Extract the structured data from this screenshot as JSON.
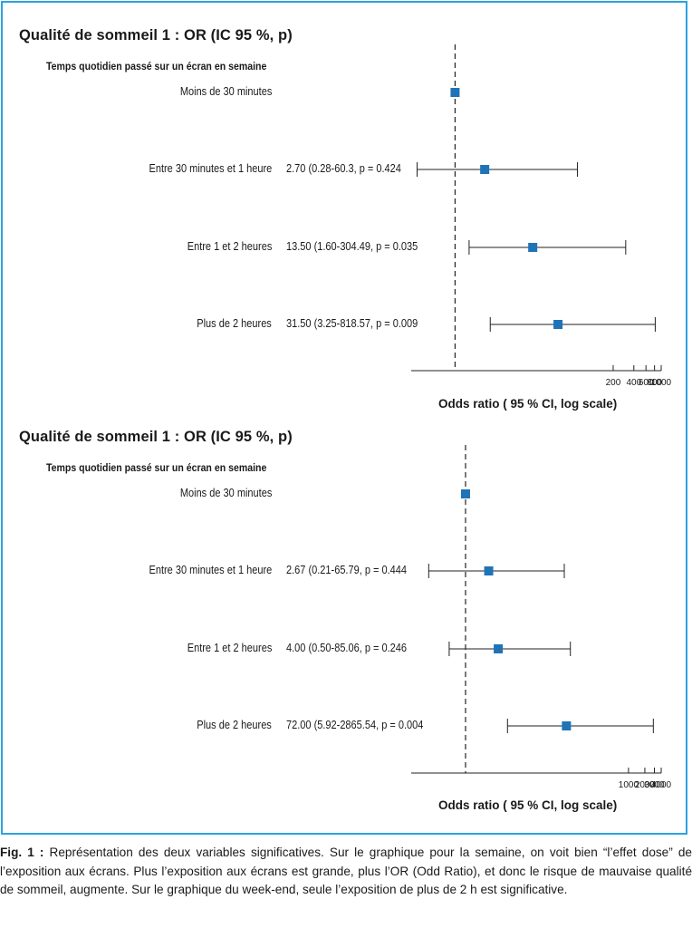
{
  "caption": {
    "prefix": "Fig. 1 :",
    "text": " Représentation des deux variables significatives. Sur le graphique pour la semaine, on voit bien “l’effet dose” de l’exposition aux écrans. Plus l’exposition aux écrans est grande, plus l’OR (Odd Ratio), et donc le risque de mauvaise qualité de sommeil, augmente. Sur le graphique du week-end, seule l’exposition de plus de 2 h est significative."
  },
  "style": {
    "marker_color": "#1f73b7",
    "frame_color": "#29a3e0"
  },
  "chart_data": [
    {
      "type": "forest",
      "title": "Qualité de sommeil 1 : OR (IC 95 %, p)",
      "section_label": "Temps quotidien passé sur un écran en semaine",
      "xlabel": "Odds ratio ( 95 % CI, log scale)",
      "log_scale": true,
      "xlim": [
        0.23,
        1000
      ],
      "reference_line": 1,
      "x_ticks": [
        200,
        400,
        600,
        800,
        1000
      ],
      "rows": [
        {
          "label": "Moins de 30 minutes",
          "stat": "",
          "or": 1,
          "lo": null,
          "hi": null
        },
        {
          "label": "Entre 30 minutes et 1 heure",
          "stat": "2.70 (0.28-60.3, p = 0.424",
          "or": 2.7,
          "lo": 0.28,
          "hi": 60.3
        },
        {
          "label": "Entre 1 et 2 heures",
          "stat": "13.50 (1.60-304.49, p = 0.035",
          "or": 13.5,
          "lo": 1.6,
          "hi": 304.49
        },
        {
          "label": "Plus de 2 heures",
          "stat": "31.50 (3.25-818.57, p = 0.009",
          "or": 31.5,
          "lo": 3.25,
          "hi": 818.57
        }
      ]
    },
    {
      "type": "forest",
      "title": "Qualité de sommeil 1 : OR (IC 95 %, p)",
      "section_label": "Temps quotidien passé sur un écran en semaine",
      "xlabel": "Odds ratio ( 95 % CI, log scale)",
      "log_scale": true,
      "xlim": [
        0.1,
        4000
      ],
      "reference_line": 1,
      "x_ticks": [
        1000,
        2000,
        3000,
        4000
      ],
      "rows": [
        {
          "label": "Moins de 30 minutes",
          "stat": "",
          "or": 1,
          "lo": null,
          "hi": null
        },
        {
          "label": "Entre 30 minutes et 1 heure",
          "stat": "2.67 (0.21-65.79, p = 0.444",
          "or": 2.67,
          "lo": 0.21,
          "hi": 65.79
        },
        {
          "label": "Entre 1 et 2 heures",
          "stat": "4.00 (0.50-85.06, p = 0.246",
          "or": 4.0,
          "lo": 0.5,
          "hi": 85.06
        },
        {
          "label": "Plus de 2 heures",
          "stat": "72.00 (5.92-2865.54, p = 0.004",
          "or": 72.0,
          "lo": 5.92,
          "hi": 2865.54
        }
      ]
    }
  ]
}
